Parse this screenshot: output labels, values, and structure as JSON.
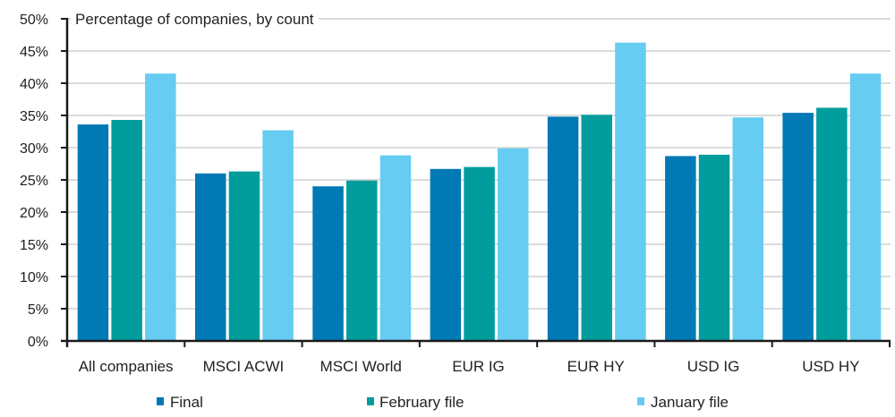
{
  "chart_data": {
    "type": "bar",
    "title": "Percentage of companies, by count",
    "xlabel": "",
    "ylabel": "",
    "ylim": [
      0,
      50
    ],
    "ytick_step": 5,
    "ytick_format": "percent",
    "yticks": [
      "0%",
      "5%",
      "10%",
      "15%",
      "20%",
      "25%",
      "30%",
      "35%",
      "40%",
      "45%",
      "50%"
    ],
    "grid": true,
    "legend_position": "bottom",
    "categories": [
      "All companies",
      "MSCI ACWI",
      "MSCI World",
      "EUR IG",
      "EUR HY",
      "USD IG",
      "USD HY"
    ],
    "series": [
      {
        "name": "Final",
        "color": "#0079B5",
        "values": [
          33.6,
          26.0,
          24.0,
          26.7,
          34.8,
          28.7,
          35.4
        ]
      },
      {
        "name": "February file",
        "color": "#009D9C",
        "values": [
          34.3,
          26.3,
          24.9,
          27.0,
          35.1,
          28.9,
          36.2
        ]
      },
      {
        "name": "January file",
        "color": "#66CCF2",
        "values": [
          41.5,
          32.7,
          28.8,
          29.9,
          46.3,
          34.7,
          41.5
        ]
      }
    ]
  }
}
